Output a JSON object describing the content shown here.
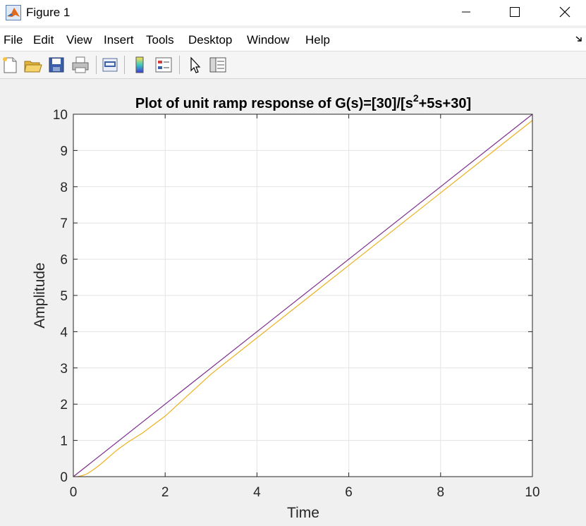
{
  "window": {
    "title": "Figure 1",
    "icon": "matlab-icon"
  },
  "menu": {
    "items": [
      "File",
      "Edit",
      "View",
      "Insert",
      "Tools",
      "Desktop",
      "Window",
      "Help"
    ]
  },
  "toolbar": {
    "icons": [
      "new-figure-icon",
      "open-file-icon",
      "save-icon",
      "print-icon",
      "link-icon",
      "colorbar-icon",
      "legend-icon",
      "pointer-icon",
      "property-inspector-icon"
    ]
  },
  "chart_data": {
    "type": "line",
    "title_main": "Plot of unit ramp response of G(s)=[30]/[s",
    "title_sup": "2",
    "title_tail": "+5s+30]",
    "xlabel": "Time",
    "ylabel": "Amplitude",
    "xlim": [
      0,
      10
    ],
    "ylim": [
      0,
      10
    ],
    "xticks": [
      0,
      2,
      4,
      6,
      8,
      10
    ],
    "yticks": [
      0,
      1,
      2,
      3,
      4,
      5,
      6,
      7,
      8,
      9,
      10
    ],
    "grid": true,
    "series": [
      {
        "color": "#7e2f8e",
        "x": [
          0,
          10
        ],
        "y": [
          0,
          10
        ]
      },
      {
        "color": "#edb120",
        "x": [
          0,
          0.1,
          0.2,
          0.3,
          0.4,
          0.5,
          0.6,
          0.7,
          0.8,
          0.9,
          1.0,
          1.2,
          1.5,
          2,
          3,
          4,
          5,
          6,
          7,
          8,
          9,
          10
        ],
        "y": [
          0,
          0.004,
          0.03,
          0.08,
          0.16,
          0.25,
          0.35,
          0.46,
          0.57,
          0.68,
          0.78,
          0.96,
          1.2,
          1.67,
          2.83,
          3.83,
          4.83,
          5.83,
          6.83,
          7.83,
          8.83,
          9.83
        ]
      }
    ]
  }
}
